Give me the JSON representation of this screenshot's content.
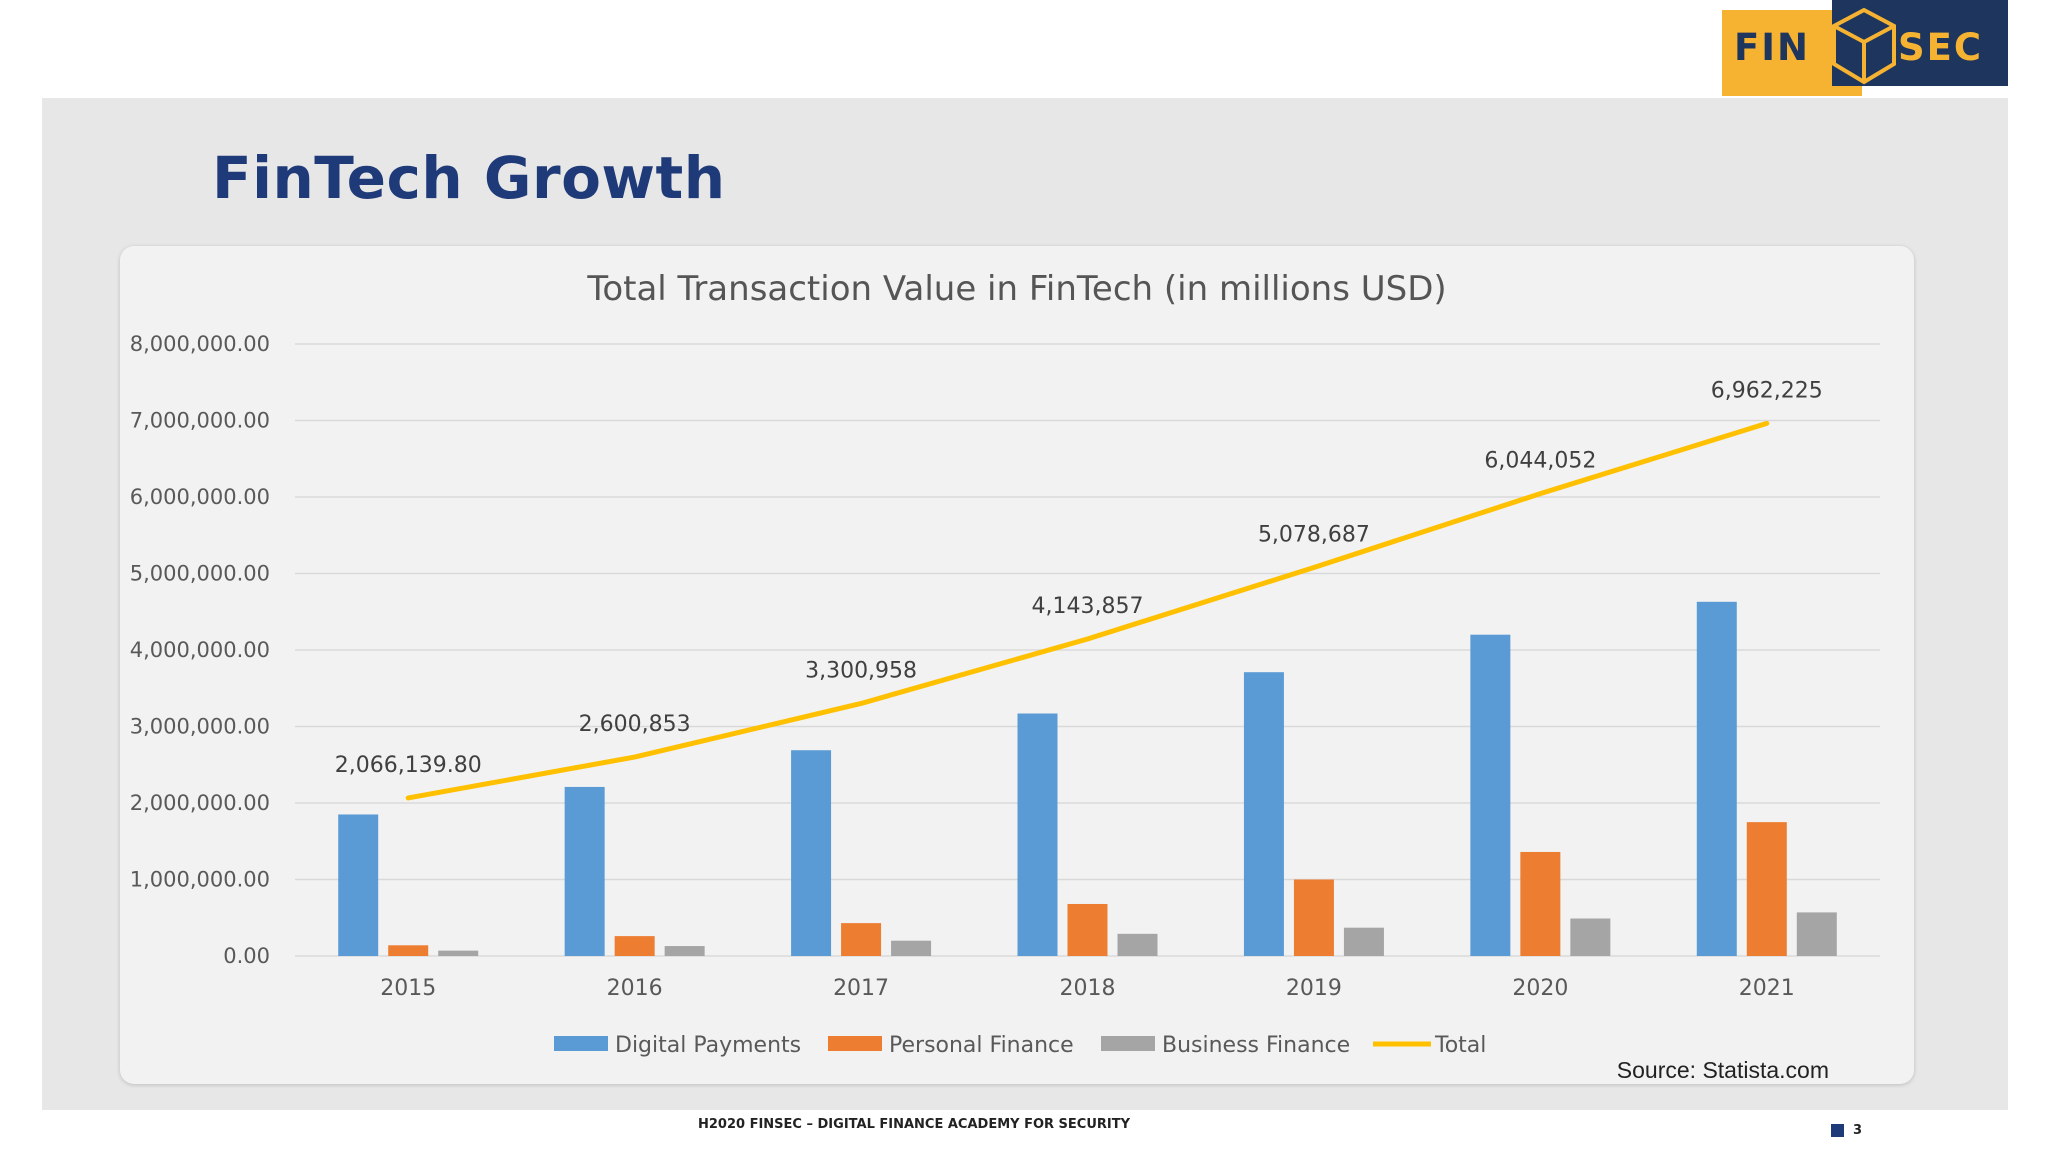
{
  "slide": {
    "title": "FinTech Growth",
    "footer": "H2020 FINSEC – DIGITAL FINANCE ACADEMY FOR SECURITY",
    "page_number": "3"
  },
  "logo": {
    "left_text": "FIN",
    "right_text": "SEC",
    "icon": "cube-icon",
    "colors": {
      "gold": "#f6b332",
      "navy": "#1e355e"
    }
  },
  "source_note": "Source: Statista.com",
  "chart_data": {
    "type": "bar",
    "title": "Total Transaction Value in FinTech (in millions USD)",
    "xlabel": "",
    "ylabel": "",
    "ylim": [
      0,
      8000000
    ],
    "y_ticks": [
      "0.00",
      "1,000,000.00",
      "2,000,000.00",
      "3,000,000.00",
      "4,000,000.00",
      "5,000,000.00",
      "6,000,000.00",
      "7,000,000.00",
      "8,000,000.00"
    ],
    "grid": true,
    "legend_position": "bottom",
    "categories": [
      "2015",
      "2016",
      "2017",
      "2018",
      "2019",
      "2020",
      "2021"
    ],
    "series": [
      {
        "name": "Digital Payments",
        "kind": "bar",
        "color": "#5b9bd5",
        "values": [
          1850000,
          2210000,
          2690000,
          3170000,
          3710000,
          4200000,
          4630000
        ]
      },
      {
        "name": "Personal Finance",
        "kind": "bar",
        "color": "#ed7d31",
        "values": [
          140000,
          260000,
          430000,
          680000,
          1000000,
          1360000,
          1750000
        ]
      },
      {
        "name": "Business Finance",
        "kind": "bar",
        "color": "#a5a5a5",
        "values": [
          70000,
          130000,
          200000,
          290000,
          370000,
          490000,
          570000
        ]
      },
      {
        "name": "Total",
        "kind": "line",
        "color": "#ffc000",
        "values": [
          2066139.8,
          2600853,
          3300958,
          4143857,
          5078687,
          6044052,
          6962225
        ],
        "labels": [
          "2,066,139.80",
          "2,600,853",
          "3,300,958",
          "4,143,857",
          "5,078,687",
          "6,044,052",
          "6,962,225"
        ]
      }
    ]
  }
}
